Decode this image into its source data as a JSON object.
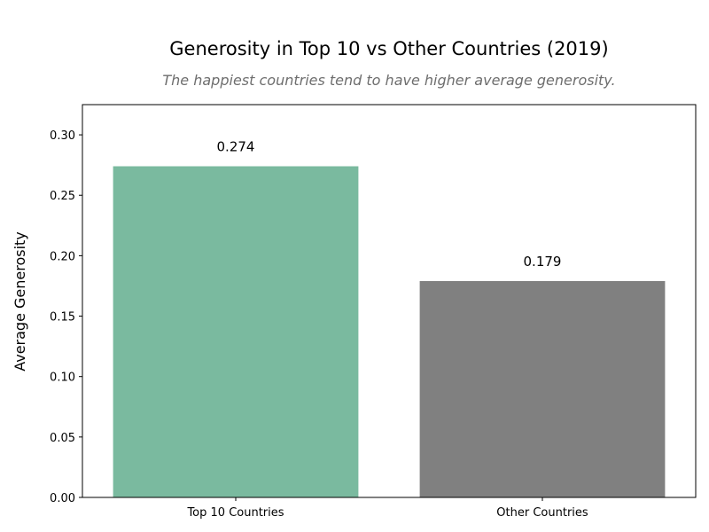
{
  "chart_data": {
    "type": "bar",
    "title": "Generosity in Top 10 vs Other Countries (2019)",
    "subtitle": "The happiest countries tend to have higher average generosity.",
    "xlabel": "",
    "ylabel": "Average Generosity",
    "categories": [
      "Top 10 Countries",
      "Other Countries"
    ],
    "values": [
      0.274,
      0.179
    ],
    "data_labels": [
      "0.274",
      "0.179"
    ],
    "colors": [
      "#7aba9f",
      "#808080"
    ],
    "ylim": [
      0,
      0.325
    ],
    "yticks": [
      0.0,
      0.05,
      0.1,
      0.15,
      0.2,
      0.25,
      0.3
    ],
    "ytick_labels": [
      "0.00",
      "0.05",
      "0.10",
      "0.15",
      "0.20",
      "0.25",
      "0.30"
    ],
    "grid": false,
    "legend": "none"
  }
}
